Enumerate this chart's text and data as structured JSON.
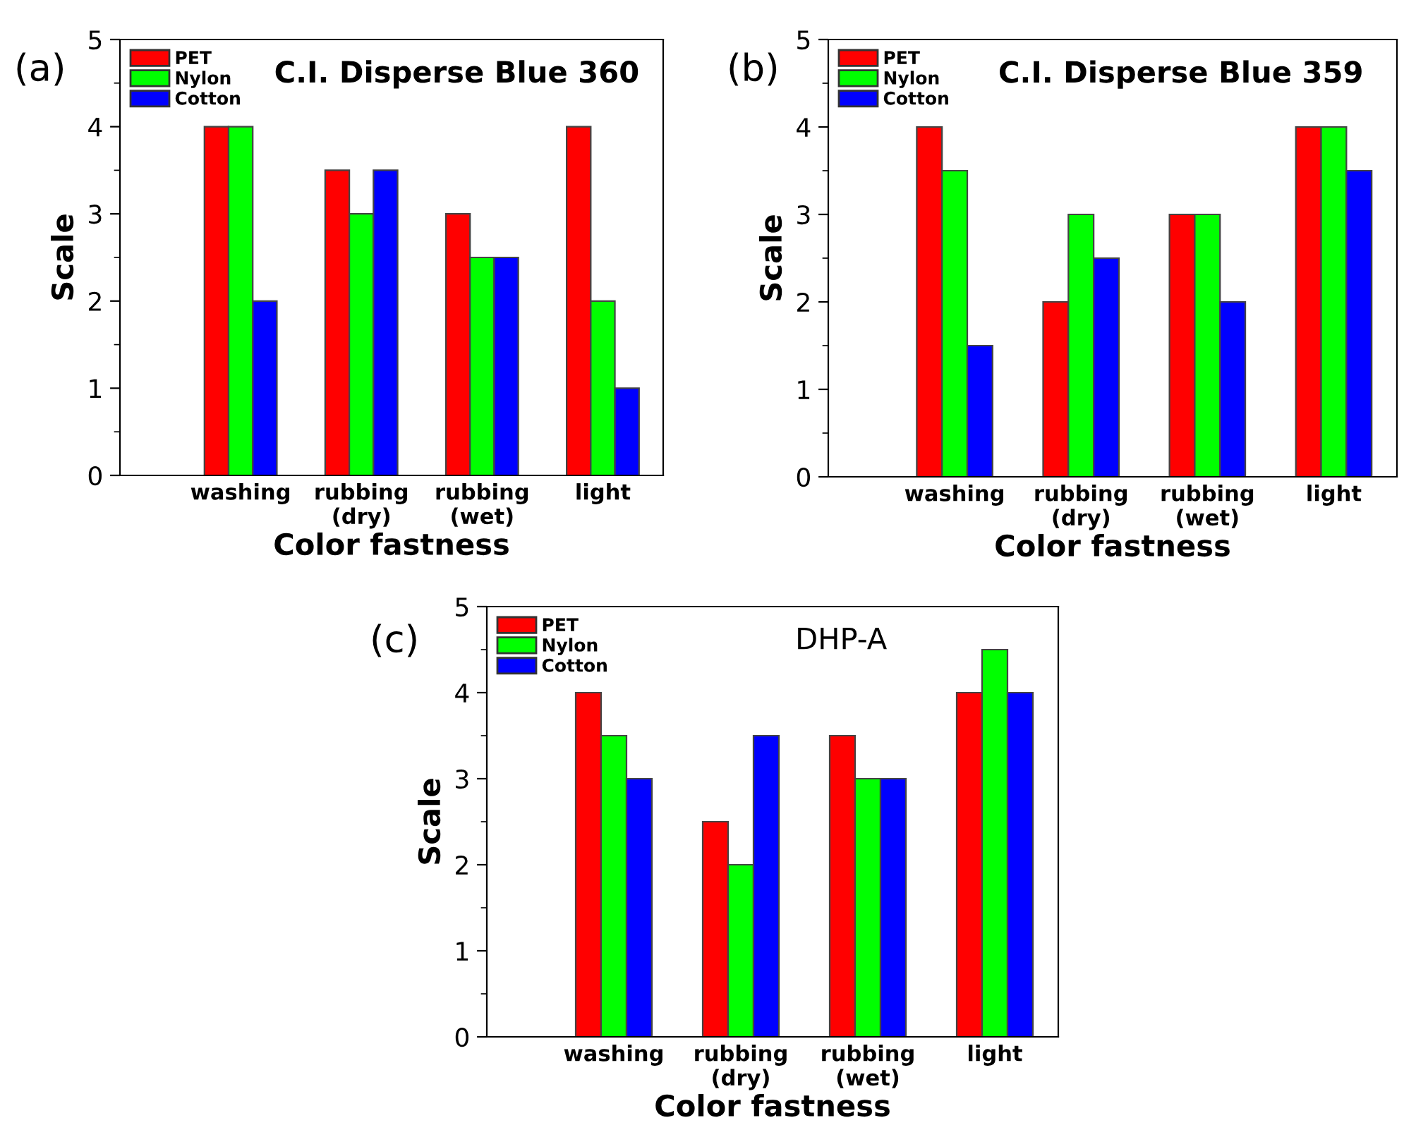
{
  "chart_data": [
    {
      "type": "bar",
      "title": "C.I. Disperse Blue 360",
      "xlabel": "Color fastness",
      "ylabel": "Scale",
      "annotations": [
        "(a)"
      ],
      "categories": [
        null,
        "washing",
        "rubbing\n(dry)",
        "rubbing\n(wet)",
        "light"
      ],
      "ylim": [
        0,
        5
      ],
      "yticks": [
        0,
        1,
        2,
        3,
        4,
        5
      ],
      "grid": false,
      "legend": "top left",
      "series": [
        {
          "name": "PET",
          "color": "#ff0000",
          "values": [
            null,
            4,
            3.5,
            3,
            4
          ]
        },
        {
          "name": "Nylon",
          "color": "#00ff00",
          "values": [
            null,
            4,
            3,
            2.5,
            2
          ]
        },
        {
          "name": "Cotton",
          "color": "#0000ff",
          "values": [
            null,
            2,
            3.5,
            2.5,
            1
          ]
        }
      ]
    },
    {
      "type": "bar",
      "title": "C.I. Disperse Blue 359",
      "xlabel": "Color fastness",
      "ylabel": "Scale",
      "annotations": [
        "(b)"
      ],
      "categories": [
        null,
        "washing",
        "rubbing\n(dry)",
        "rubbing\n(wet)",
        "light"
      ],
      "ylim": [
        0,
        5
      ],
      "yticks": [
        0,
        1,
        2,
        3,
        4,
        5
      ],
      "grid": false,
      "legend": "top left",
      "series": [
        {
          "name": "PET",
          "color": "#ff0000",
          "values": [
            null,
            4,
            2,
            3,
            4
          ]
        },
        {
          "name": "Nylon",
          "color": "#00ff00",
          "values": [
            null,
            3.5,
            3,
            3,
            4
          ]
        },
        {
          "name": "Cotton",
          "color": "#0000ff",
          "values": [
            null,
            1.5,
            2.5,
            2,
            3.5
          ]
        }
      ]
    },
    {
      "type": "bar",
      "title": "DHP-A",
      "xlabel": "Color fastness",
      "ylabel": "Scale",
      "annotations": [
        "(c)"
      ],
      "categories": [
        null,
        "washing",
        "rubbing\n(dry)",
        "rubbing\n(wet)",
        "light"
      ],
      "ylim": [
        0,
        5
      ],
      "yticks": [
        0,
        1,
        2,
        3,
        4,
        5
      ],
      "grid": false,
      "legend": "top left",
      "series": [
        {
          "name": "PET",
          "color": "#ff0000",
          "values": [
            null,
            4,
            2.5,
            3.5,
            4
          ]
        },
        {
          "name": "Nylon",
          "color": "#00ff00",
          "values": [
            null,
            3.5,
            2,
            3,
            4.5
          ]
        },
        {
          "name": "Cotton",
          "color": "#0000ff",
          "values": [
            null,
            3,
            3.5,
            3,
            4
          ]
        }
      ]
    }
  ]
}
